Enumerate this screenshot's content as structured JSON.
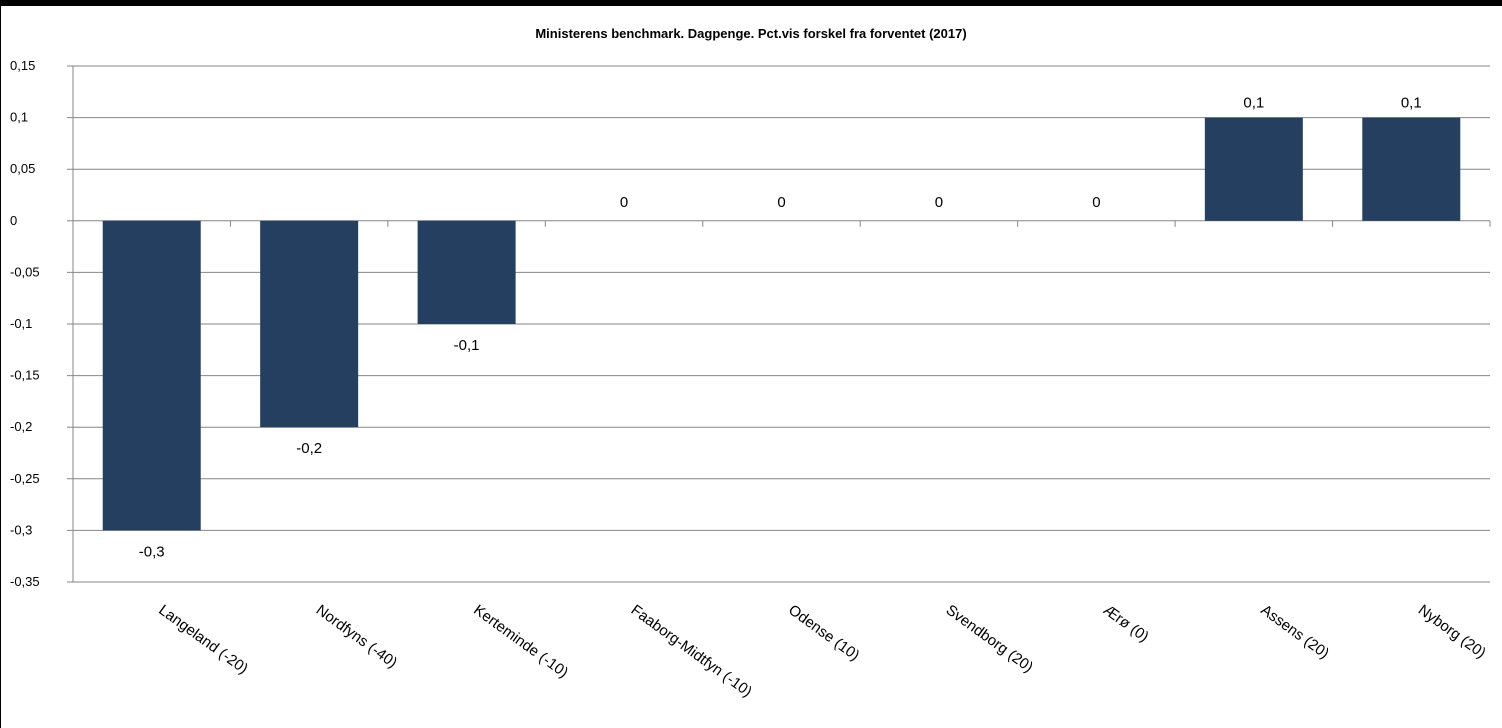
{
  "chart_data": {
    "type": "bar",
    "title": "Ministerens benchmark. Dagpenge. Pct.vis forskel fra forventet (2017)",
    "categories": [
      "Langeland (-20)",
      "Nordfyns (-40)",
      "Kerteminde (-10)",
      "Faaborg-Midtfyn (-10)",
      "Odense (10)",
      "Svendborg (20)",
      "Ærø (0)",
      "Assens (20)",
      "Nyborg (20)"
    ],
    "values": [
      -0.3,
      -0.2,
      -0.1,
      0,
      0,
      0,
      0,
      0.1,
      0.1
    ],
    "data_labels": [
      "-0,3",
      "-0,2",
      "-0,1",
      "0",
      "0",
      "0",
      "0",
      "0,1",
      "0,1"
    ],
    "yticks": [
      0.15,
      0.1,
      0.05,
      0,
      -0.05,
      -0.1,
      -0.15,
      -0.2,
      -0.25,
      -0.3,
      -0.35
    ],
    "ytick_labels": [
      "0,15",
      "0,1",
      "0,05",
      "0",
      "-0,05",
      "-0,1",
      "-0,15",
      "-0,2",
      "-0,25",
      "-0,3",
      "-0,35"
    ],
    "ylim": [
      -0.35,
      0.15
    ],
    "xlabel": "",
    "ylabel": "",
    "grid": true,
    "legend": "none",
    "bar_color": "#243F60"
  }
}
